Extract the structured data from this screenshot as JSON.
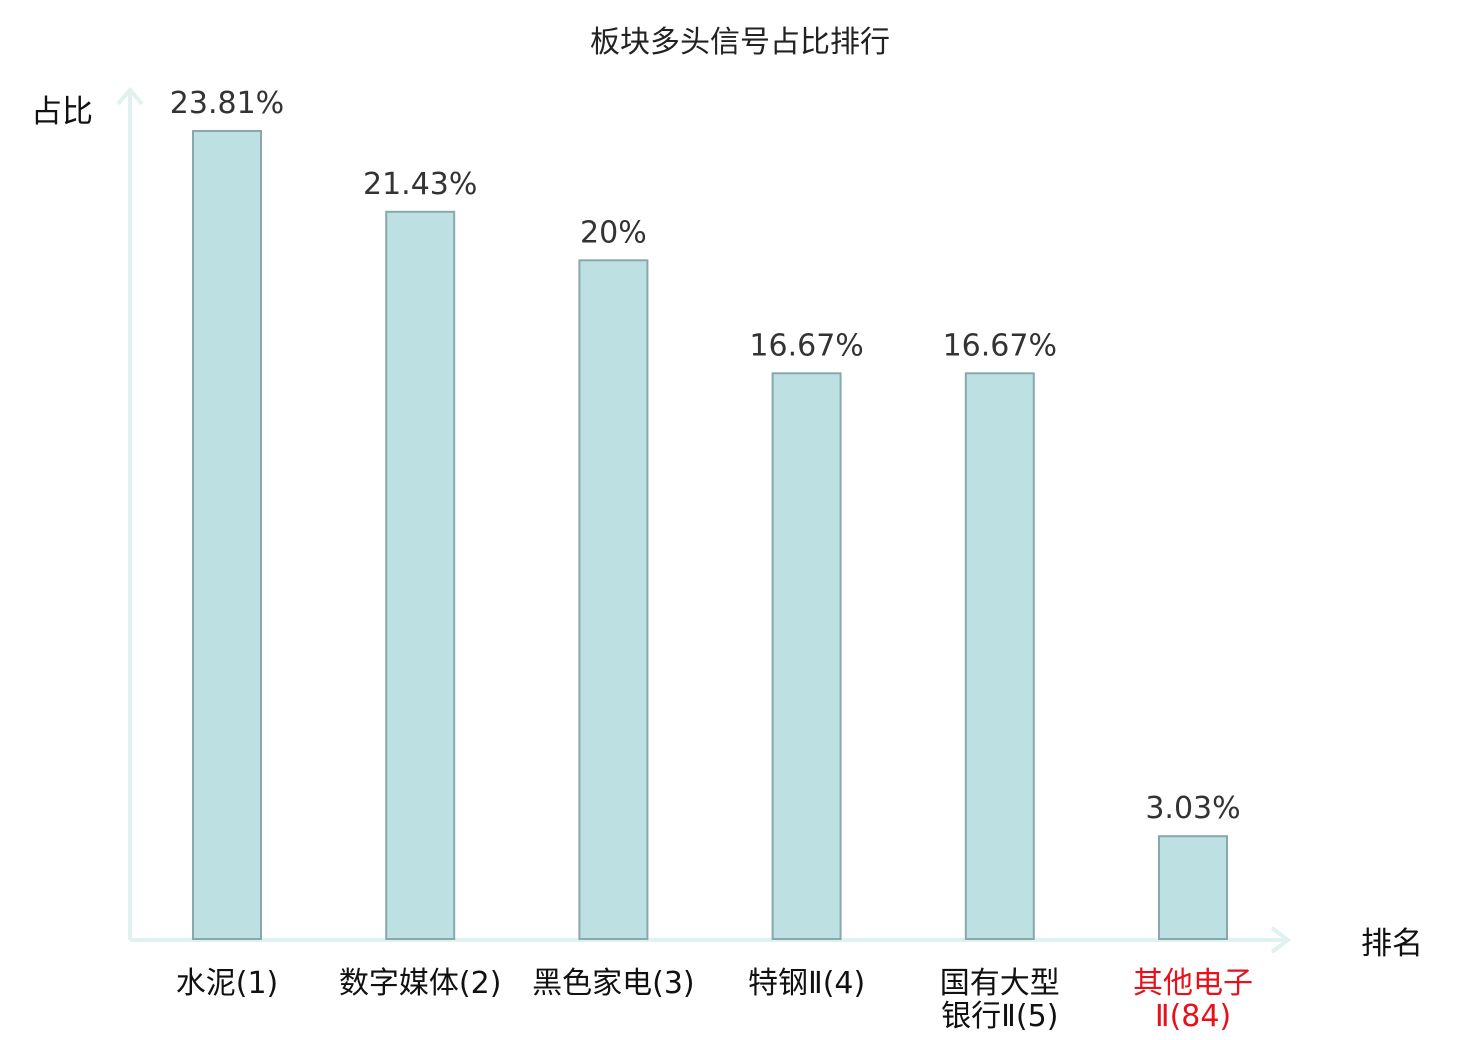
{
  "chart_data": {
    "type": "bar",
    "title": "板块多头信号占比排行",
    "xlabel": "排名",
    "ylabel": "占比",
    "categories": [
      [
        "水泥(1)"
      ],
      [
        "数字媒体(2)"
      ],
      [
        "黑色家电(3)"
      ],
      [
        "特钢Ⅱ(4)"
      ],
      [
        "国有大型",
        "银行Ⅱ(5)"
      ],
      [
        "其他电子",
        "Ⅱ(84)"
      ]
    ],
    "values": [
      23.81,
      21.43,
      20,
      16.67,
      16.67,
      3.03
    ],
    "value_labels": [
      "23.81%",
      "21.43%",
      "20%",
      "16.67%",
      "16.67%",
      "3.03%"
    ],
    "highlight_index": 5,
    "ylim": [
      0,
      23.81
    ],
    "grid": false,
    "legend": "none",
    "colors": {
      "bar_fill": "#bde0e3",
      "bar_stroke": "#88a8ab",
      "axis": "#dff2ef",
      "label": "#111111",
      "highlight": "#e8101a"
    }
  }
}
